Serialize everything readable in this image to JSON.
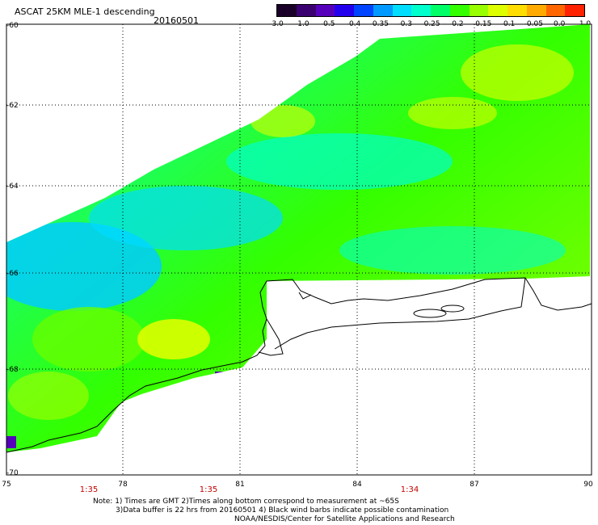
{
  "header": {
    "title": "ASCAT 25KM MLE-1 descending",
    "date": "20160501"
  },
  "colorbar": {
    "labels": [
      "-3.0",
      "-1.0",
      "-0.5",
      "-0.4",
      "-0.35",
      "-0.3",
      "-0.25",
      "-0.2",
      "-0.15",
      "-0.1",
      "-0.05",
      "0.0",
      "1.0"
    ],
    "colors": [
      "#1a0028",
      "#3a0070",
      "#5500bb",
      "#2200ee",
      "#0044ff",
      "#0099ff",
      "#00ddff",
      "#00ffcc",
      "#00ff66",
      "#33ff00",
      "#99ff00",
      "#ddff00",
      "#ffdd00",
      "#ffaa00",
      "#ff6600",
      "#ff2200"
    ]
  },
  "map": {
    "lon_labels": [
      "75",
      "78",
      "81",
      "84",
      "87",
      "90"
    ],
    "lat_labels": [
      "-60",
      "-62",
      "-64",
      "-66",
      "-68",
      "-70"
    ],
    "lon_range": [
      75,
      90
    ],
    "lat_range": [
      -60,
      -70
    ],
    "pass_times": [
      "1:35",
      "1:35",
      "1:34"
    ],
    "grid": "dotted"
  },
  "footer": {
    "note1": "Note: 1) Times are GMT 2)Times along bottom correspond to measurement at ~65S",
    "note2": "3)Data buffer is 22 hrs from 20160501 4) Black wind barbs indicate possible contamination",
    "note3": "NOAA/NESDIS/Center for Satellite Applications and Research"
  }
}
